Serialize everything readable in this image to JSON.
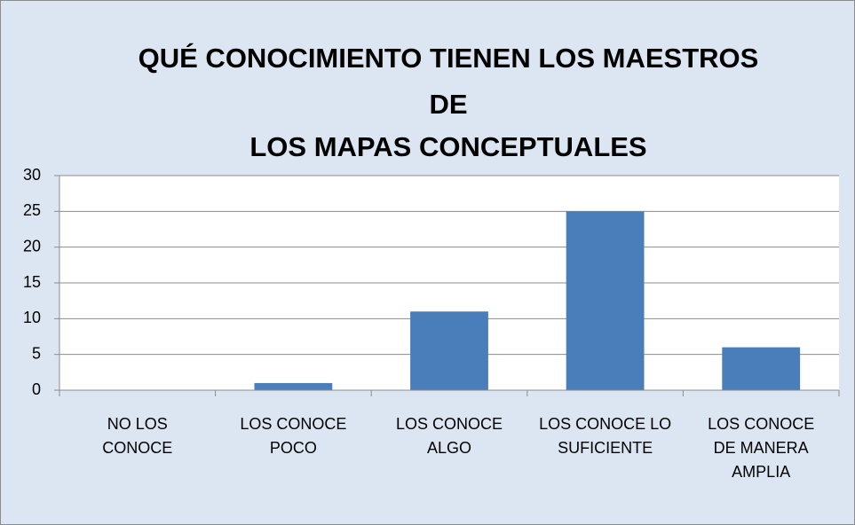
{
  "chart_data": {
    "type": "bar",
    "title": [
      "QUÉ CONOCIMIENTO TIENEN LOS MAESTROS",
      "DE",
      "LOS MAPAS CONCEPTUALES"
    ],
    "categories": [
      "NO LOS CONOCE",
      "LOS CONOCE POCO",
      "LOS CONOCE ALGO",
      "LOS CONOCE LO SUFICIENTE",
      "LOS CONOCE DE MANERA AMPLIA"
    ],
    "values": [
      0,
      1,
      11,
      25,
      6
    ],
    "color": "#4a7ebb",
    "ylim": [
      0,
      30
    ],
    "yticks": [
      0,
      5,
      10,
      15,
      20,
      25,
      30
    ],
    "grid": true
  }
}
